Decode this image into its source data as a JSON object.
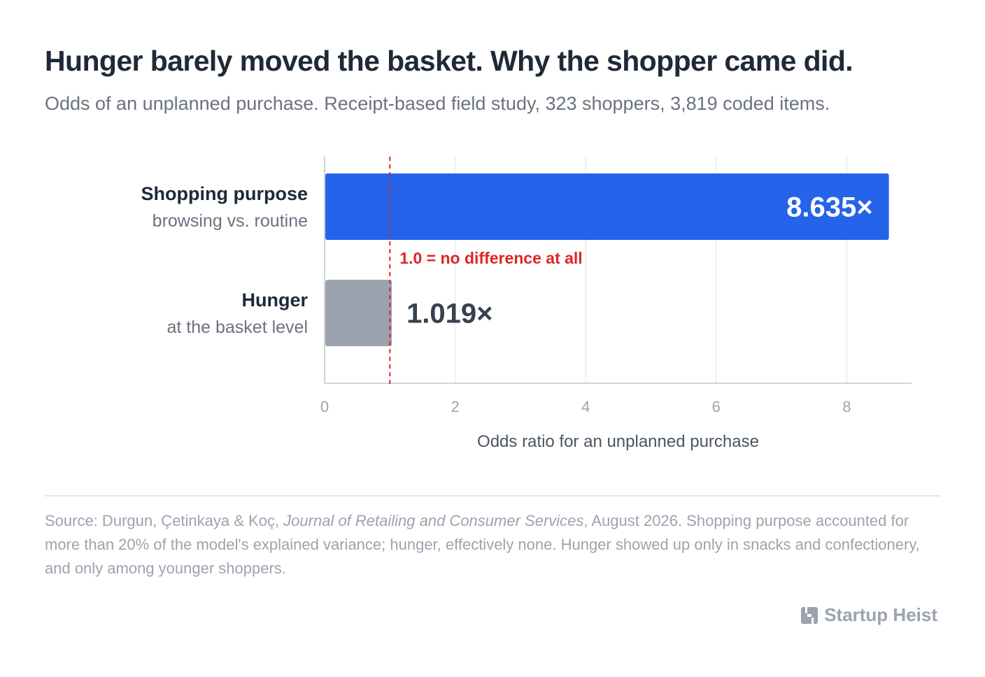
{
  "header": {
    "title": "Hunger barely moved the basket. Why the shopper came did.",
    "subtitle": "Odds of an unplanned purchase. Receipt-based field study, 323 shoppers, 3,819 coded items."
  },
  "chart_data": {
    "type": "bar",
    "orientation": "horizontal",
    "categories": [
      "Shopping purpose",
      "Hunger"
    ],
    "category_descriptions": [
      "browsing vs. routine",
      "at the basket level"
    ],
    "values": [
      8.635,
      1.019
    ],
    "value_labels": [
      "8.635×",
      "1.019×"
    ],
    "xlabel": "Odds ratio for an unplanned purchase",
    "xlim": [
      0,
      9
    ],
    "xticks": [
      0,
      2,
      4,
      6,
      8
    ],
    "grid": true,
    "reference_line": {
      "value": 1.0,
      "label": "1.0 = no difference at all",
      "color": "#dc2626"
    },
    "bar_colors": [
      "#2563eb",
      "#9ca3af"
    ],
    "label_colors": [
      "#ffffff",
      "#374151"
    ]
  },
  "footer": {
    "source_prefix": "Source: Durgun, Çetinkaya & Koç, ",
    "source_journal": "Journal of Retailing and Consumer Services",
    "source_rest": ", August 2026. Shopping purpose accounted for more than 20% of the model's explained variance; hunger, effectively none. Hunger showed up only in snacks and confectionery, and only among younger shoppers.",
    "brand": "Startup Heist",
    "brand_icon": "building-h-icon"
  }
}
